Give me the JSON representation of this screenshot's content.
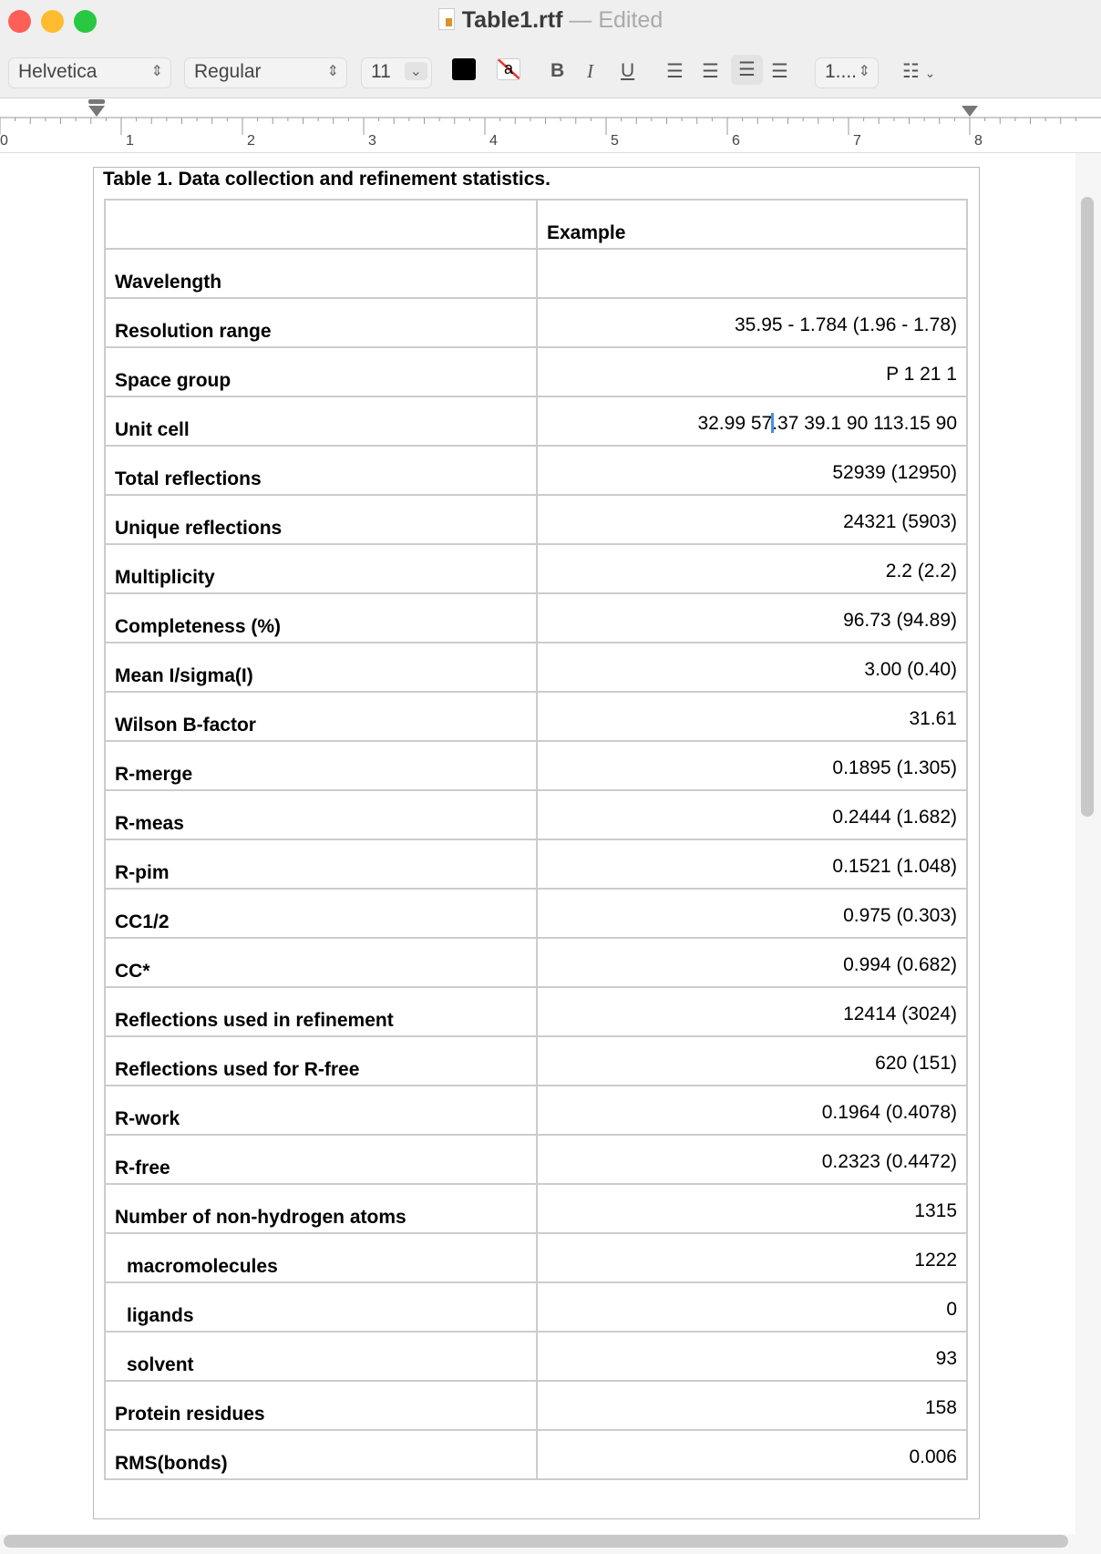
{
  "window": {
    "filename": "Table1.rtf",
    "separator": "—",
    "status": "Edited"
  },
  "toolbar": {
    "font_family": "Helvetica",
    "font_style": "Regular",
    "font_size": "11",
    "text_color": "#000000",
    "bold": "B",
    "italic": "I",
    "underline": "U",
    "alignment_selected": "right",
    "spacing": "1....",
    "list_icon": "list-icon"
  },
  "ruler": {
    "labels": [
      "0",
      "1",
      "2",
      "3",
      "4",
      "5",
      "6",
      "7",
      "8"
    ]
  },
  "table": {
    "caption": "Table 1.  Data collection and refinement statistics.",
    "header": [
      "",
      "Example"
    ],
    "rows": [
      {
        "label": "Wavelength",
        "value": ""
      },
      {
        "label": "Resolution range",
        "value": "35.95  - 1.784 (1.96  - 1.78)"
      },
      {
        "label": "Space group",
        "value": "P 1 21 1"
      },
      {
        "label": "Unit cell",
        "value_before_caret": "32.99 57",
        "value_after_caret": ".37 39.1 90 113.15 90"
      },
      {
        "label": "Total reflections",
        "value": "52939 (12950)"
      },
      {
        "label": "Unique reflections",
        "value": "24321 (5903)"
      },
      {
        "label": "Multiplicity",
        "value": "2.2 (2.2)"
      },
      {
        "label": "Completeness (%)",
        "value": "96.73 (94.89)"
      },
      {
        "label": "Mean I/sigma(I)",
        "value": "3.00 (0.40)"
      },
      {
        "label": "Wilson B-factor",
        "value": "31.61"
      },
      {
        "label": "R-merge",
        "value": "0.1895 (1.305)"
      },
      {
        "label": "R-meas",
        "value": "0.2444 (1.682)"
      },
      {
        "label": "R-pim",
        "value": "0.1521 (1.048)"
      },
      {
        "label": "CC1/2",
        "value": "0.975 (0.303)"
      },
      {
        "label": "CC*",
        "value": "0.994 (0.682)"
      },
      {
        "label": "Reflections used in refinement",
        "value": "12414 (3024)"
      },
      {
        "label": "Reflections used for R-free",
        "value": "620 (151)"
      },
      {
        "label": "R-work",
        "value": "0.1964 (0.4078)"
      },
      {
        "label": "R-free",
        "value": "0.2323 (0.4472)"
      },
      {
        "label": "Number of non-hydrogen atoms",
        "value": "1315"
      },
      {
        "label": "macromolecules",
        "value": "1222",
        "indent": true
      },
      {
        "label": "ligands",
        "value": "0",
        "indent": true
      },
      {
        "label": "solvent",
        "value": "93",
        "indent": true
      },
      {
        "label": "Protein residues",
        "value": "158"
      },
      {
        "label": "RMS(bonds)",
        "value": "0.006"
      }
    ]
  }
}
